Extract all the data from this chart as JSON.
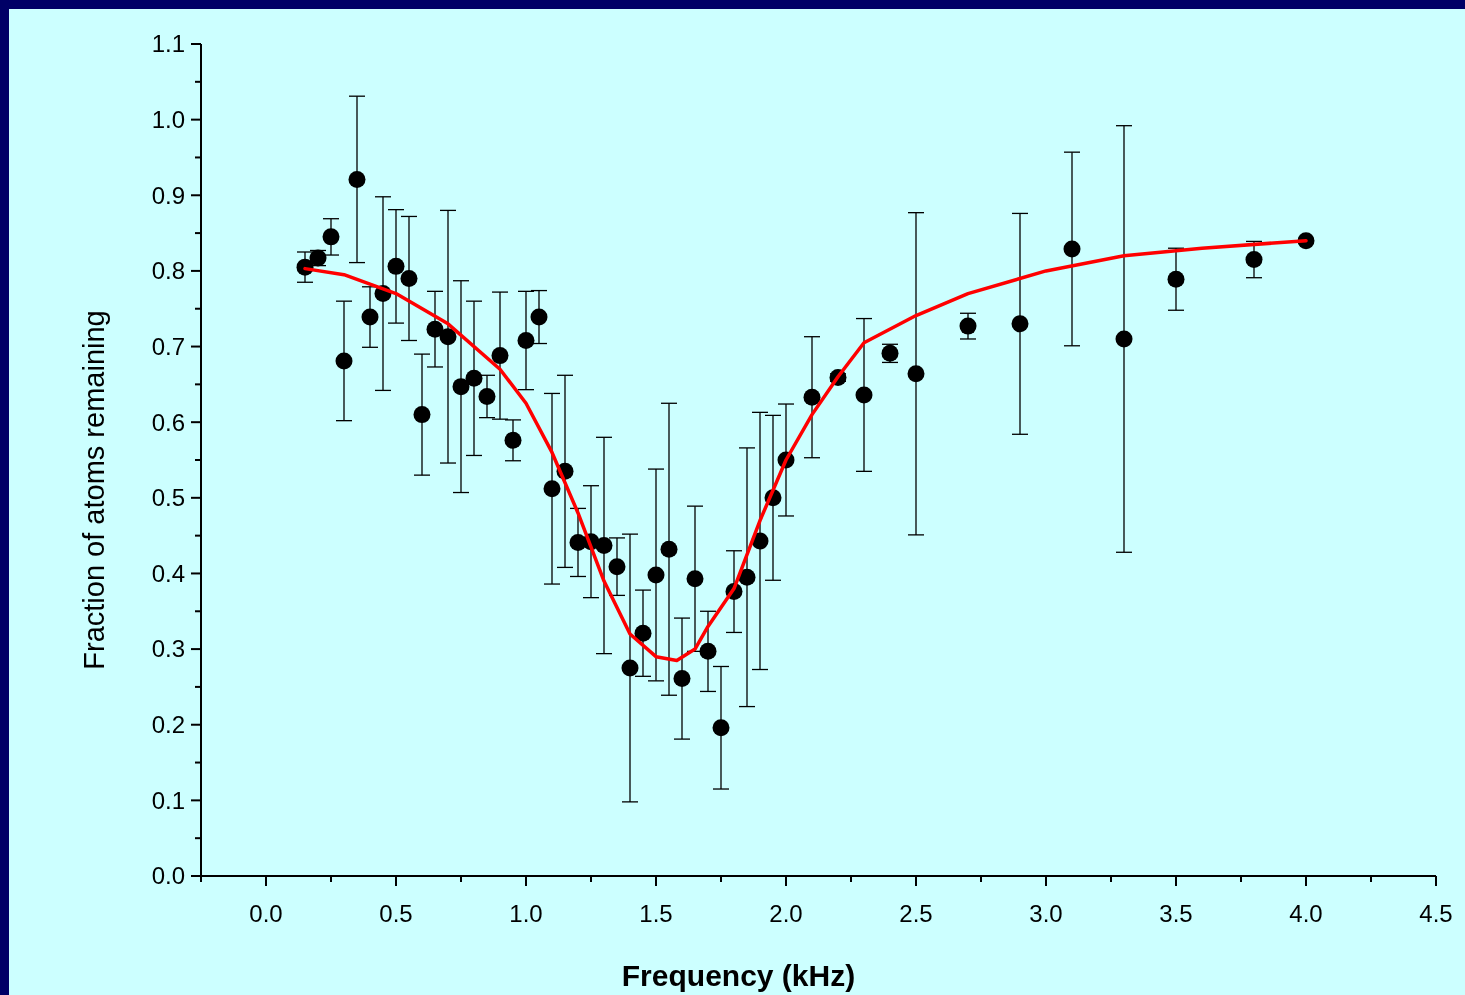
{
  "chart_data": {
    "type": "scatter",
    "xlabel": "Frequency (kHz)",
    "ylabel": "Fraction of atoms remaining",
    "xlim": [
      -0.25,
      4.5
    ],
    "ylim": [
      0,
      1.1
    ],
    "xticks": [
      {
        "value": -0.25,
        "label": null
      },
      {
        "value": 0,
        "label": "0.0"
      },
      {
        "value": 0.25,
        "label": null
      },
      {
        "value": 0.5,
        "label": "0.5"
      },
      {
        "value": 0.75,
        "label": null
      },
      {
        "value": 1,
        "label": "1.0"
      },
      {
        "value": 1.25,
        "label": null
      },
      {
        "value": 1.5,
        "label": "1.5"
      },
      {
        "value": 1.75,
        "label": null
      },
      {
        "value": 2,
        "label": "2.0"
      },
      {
        "value": 2.25,
        "label": null
      },
      {
        "value": 2.5,
        "label": "2.5"
      },
      {
        "value": 2.75,
        "label": null
      },
      {
        "value": 3,
        "label": "3.0"
      },
      {
        "value": 3.25,
        "label": null
      },
      {
        "value": 3.5,
        "label": "3.5"
      },
      {
        "value": 3.75,
        "label": null
      },
      {
        "value": 4,
        "label": "4.0"
      },
      {
        "value": 4.25,
        "label": null
      },
      {
        "value": 4.5,
        "label": "4.5"
      }
    ],
    "yticks": [
      {
        "value": 0,
        "label": "0.0"
      },
      {
        "value": 0.05,
        "label": null
      },
      {
        "value": 0.1,
        "label": "0.1"
      },
      {
        "value": 0.15,
        "label": null
      },
      {
        "value": 0.2,
        "label": "0.2"
      },
      {
        "value": 0.25,
        "label": null
      },
      {
        "value": 0.3,
        "label": "0.3"
      },
      {
        "value": 0.35,
        "label": null
      },
      {
        "value": 0.4,
        "label": "0.4"
      },
      {
        "value": 0.45,
        "label": null
      },
      {
        "value": 0.5,
        "label": "0.5"
      },
      {
        "value": 0.55,
        "label": null
      },
      {
        "value": 0.6,
        "label": "0.6"
      },
      {
        "value": 0.65,
        "label": null
      },
      {
        "value": 0.7,
        "label": "0.7"
      },
      {
        "value": 0.75,
        "label": null
      },
      {
        "value": 0.8,
        "label": "0.8"
      },
      {
        "value": 0.85,
        "label": null
      },
      {
        "value": 0.9,
        "label": "0.9"
      },
      {
        "value": 0.95,
        "label": null
      },
      {
        "value": 1,
        "label": "1.0"
      },
      {
        "value": 1.05,
        "label": null
      },
      {
        "value": 1.1,
        "label": "1.1"
      }
    ],
    "grid": false,
    "series": [
      {
        "color": "#000000",
        "marker": "circle",
        "x": [
          0.15,
          0.2,
          0.25,
          0.3,
          0.35,
          0.4,
          0.45,
          0.5,
          0.55,
          0.6,
          0.65,
          0.7,
          0.75,
          0.8,
          0.85,
          0.9,
          0.95,
          1.0,
          1.05,
          1.1,
          1.15,
          1.2,
          1.25,
          1.3,
          1.35,
          1.4,
          1.45,
          1.5,
          1.55,
          1.6,
          1.65,
          1.7,
          1.75,
          1.8,
          1.85,
          1.9,
          1.95,
          2.0,
          2.1,
          2.2,
          2.3,
          2.4,
          2.5,
          2.7,
          2.9,
          3.1,
          3.3,
          3.5,
          3.8,
          4.0
        ],
        "values": [
          0.805,
          0.817,
          0.845,
          0.681,
          0.921,
          0.739,
          0.77,
          0.806,
          0.79,
          0.61,
          0.723,
          0.713,
          0.647,
          0.658,
          0.634,
          0.688,
          0.576,
          0.708,
          0.739,
          0.512,
          0.535,
          0.441,
          0.442,
          0.437,
          0.409,
          0.275,
          0.321,
          0.398,
          0.432,
          0.261,
          0.393,
          0.297,
          0.196,
          0.376,
          0.395,
          0.443,
          0.5,
          0.55,
          0.633,
          0.659,
          0.636,
          0.691,
          0.664,
          0.727,
          0.73,
          0.829,
          0.71,
          0.789,
          0.815,
          0.84
        ],
        "errors": [
          0.02,
          0.01,
          0.024,
          0.079,
          0.11,
          0.04,
          0.128,
          0.075,
          0.082,
          0.08,
          0.05,
          0.167,
          0.14,
          0.102,
          0.028,
          0.084,
          0.027,
          0.065,
          0.035,
          0.126,
          0.127,
          0.045,
          0.074,
          0.143,
          0.038,
          0.177,
          0.057,
          0.14,
          0.193,
          0.08,
          0.096,
          0.053,
          0.081,
          0.054,
          0.171,
          0.17,
          0.109,
          0.074,
          0.08,
          0.005,
          0.101,
          0.012,
          0.213,
          0.017,
          0.146,
          0.128,
          0.282,
          0.041,
          0.024,
          0.003
        ]
      },
      {
        "type": "line",
        "color": "#ff0000",
        "line_style": "solid",
        "x": [
          0.15,
          0.3,
          0.5,
          0.7,
          0.9,
          1.0,
          1.1,
          1.2,
          1.3,
          1.4,
          1.5,
          1.58,
          1.65,
          1.7,
          1.8,
          1.9,
          2.0,
          2.1,
          2.2,
          2.3,
          2.5,
          2.7,
          3.0,
          3.3,
          3.6,
          4.0
        ],
        "values": [
          0.803,
          0.795,
          0.77,
          0.73,
          0.67,
          0.625,
          0.56,
          0.48,
          0.39,
          0.32,
          0.29,
          0.285,
          0.3,
          0.33,
          0.38,
          0.47,
          0.55,
          0.61,
          0.66,
          0.705,
          0.741,
          0.77,
          0.8,
          0.82,
          0.83,
          0.84
        ]
      }
    ]
  }
}
